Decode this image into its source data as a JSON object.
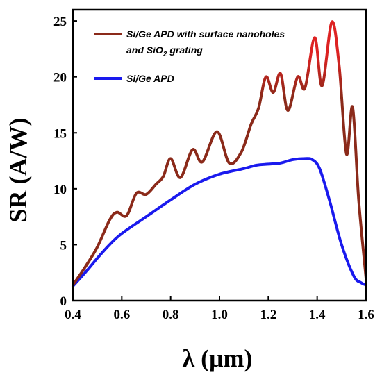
{
  "chart_data": {
    "type": "line",
    "title": "",
    "xlabel": "λ (μm)",
    "ylabel": "SR (A/W)",
    "xlim": [
      0.4,
      1.6
    ],
    "ylim": [
      0,
      26
    ],
    "xticks": [
      "0.4",
      "0.6",
      "0.8",
      "1.0",
      "1.2",
      "1.4",
      "1.6"
    ],
    "yticks": [
      "0",
      "5",
      "10",
      "15",
      "20",
      "25"
    ],
    "grid": false,
    "legend_position": "top-left",
    "series": [
      {
        "name": "Si/Ge APD with surface nanoholes and SiO2 grating",
        "legend_line1": "Si/Ge APD with surface nanoholes",
        "legend_line2_prefix": "and SiO",
        "legend_line2_sub": "2",
        "legend_line2_suffix": " grating",
        "color": "#8b2a1a",
        "color_peak": "#dd2222",
        "x": [
          0.4,
          0.45,
          0.5,
          0.55,
          0.58,
          0.62,
          0.66,
          0.7,
          0.74,
          0.77,
          0.8,
          0.84,
          0.89,
          0.93,
          0.99,
          1.04,
          1.09,
          1.13,
          1.16,
          1.19,
          1.22,
          1.25,
          1.28,
          1.32,
          1.35,
          1.39,
          1.42,
          1.46,
          1.49,
          1.52,
          1.545,
          1.57,
          1.6
        ],
        "y": [
          1.4,
          3.0,
          4.8,
          7.2,
          7.9,
          7.6,
          9.6,
          9.5,
          10.4,
          11.1,
          12.7,
          11.0,
          13.5,
          12.4,
          15.1,
          12.3,
          13.3,
          15.8,
          17.2,
          20.0,
          18.6,
          20.3,
          17.0,
          20.0,
          19.0,
          23.5,
          19.2,
          24.9,
          21.0,
          13.1,
          17.3,
          9.0,
          2.0
        ]
      },
      {
        "name": "Si/Ge APD",
        "legend_line1": "Si/Ge APD",
        "color": "#1a1aee",
        "x": [
          0.4,
          0.45,
          0.5,
          0.55,
          0.6,
          0.7,
          0.8,
          0.9,
          1.0,
          1.1,
          1.15,
          1.2,
          1.25,
          1.3,
          1.35,
          1.38,
          1.41,
          1.45,
          1.5,
          1.55,
          1.58,
          1.6
        ],
        "y": [
          1.3,
          2.5,
          3.8,
          5.0,
          6.0,
          7.5,
          9.0,
          10.4,
          11.3,
          11.8,
          12.1,
          12.2,
          12.3,
          12.6,
          12.7,
          12.6,
          11.8,
          9.0,
          5.0,
          2.2,
          1.6,
          1.4
        ]
      }
    ]
  }
}
